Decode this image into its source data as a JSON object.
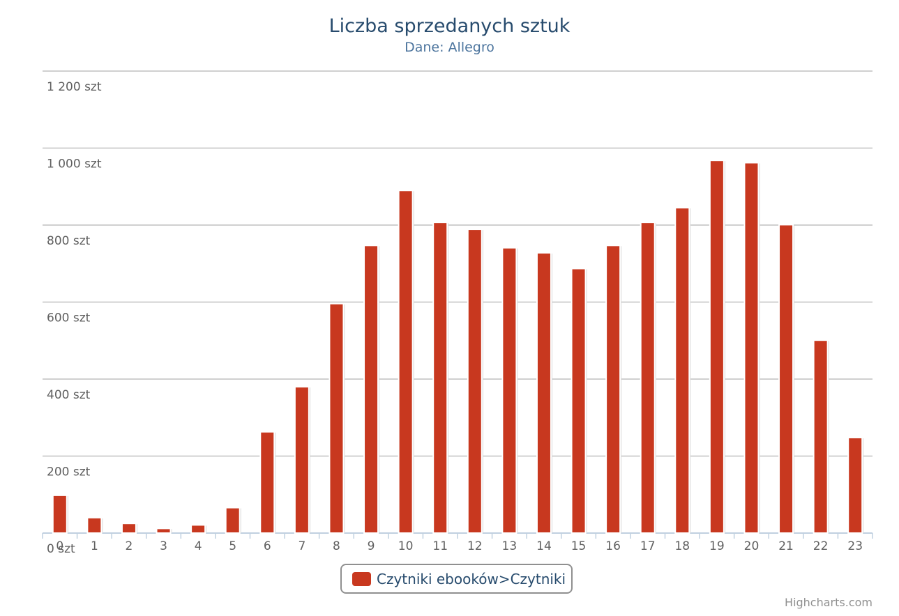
{
  "chart_data": {
    "type": "bar",
    "title": "Liczba sprzedanych sztuk",
    "subtitle": "Dane: Allegro",
    "categories": [
      "0",
      "1",
      "2",
      "3",
      "4",
      "5",
      "6",
      "7",
      "8",
      "9",
      "10",
      "11",
      "12",
      "13",
      "14",
      "15",
      "16",
      "17",
      "18",
      "19",
      "20",
      "21",
      "22",
      "23"
    ],
    "series": [
      {
        "name": "Czytniki ebooków>Czytniki",
        "values": [
          98,
          40,
          25,
          12,
          21,
          66,
          263,
          380,
          596,
          747,
          890,
          807,
          789,
          741,
          728,
          687,
          747,
          807,
          845,
          968,
          962,
          801,
          501,
          248
        ]
      }
    ],
    "y_ticks": [
      "0 szt",
      "200 szt",
      "400 szt",
      "600 szt",
      "800 szt",
      "1 000 szt",
      "1 200 szt"
    ],
    "ylim": [
      0,
      1200
    ],
    "grid": true,
    "legend": "bottom-center",
    "color": "#c8381f"
  },
  "credits": "Highcharts.com"
}
